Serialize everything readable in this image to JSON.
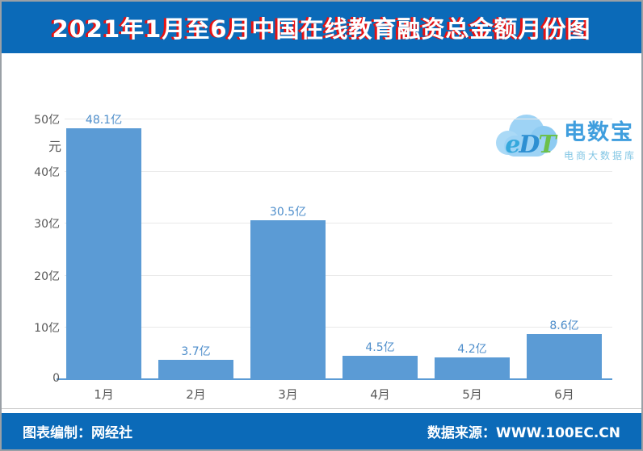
{
  "header": {
    "title": "2021年1月至6月中国在线教育融资总金额月份图"
  },
  "logo": {
    "mark_letters": [
      "e",
      "D",
      "T"
    ],
    "name": "电数宝",
    "subtitle": "电商大数据库",
    "cloud_color": "#8ecbf2",
    "name_color": "#3f9ede"
  },
  "chart_data": {
    "type": "bar",
    "title": "2021年1月至6月中国在线教育融资总金额月份图",
    "unit_label": "元",
    "categories": [
      "1月",
      "2月",
      "3月",
      "4月",
      "5月",
      "6月"
    ],
    "values": [
      48.1,
      3.7,
      30.5,
      4.5,
      4.2,
      8.6
    ],
    "value_labels": [
      "48.1亿",
      "3.7亿",
      "30.5亿",
      "4.5亿",
      "4.2亿",
      "8.6亿"
    ],
    "yticks": [
      {
        "label": "0",
        "value": 0
      },
      {
        "label": "10亿",
        "value": 10
      },
      {
        "label": "20亿",
        "value": 20
      },
      {
        "label": "30亿",
        "value": 30
      },
      {
        "label": "40亿",
        "value": 40
      },
      {
        "label": "50亿",
        "value": 50
      }
    ],
    "ylim": [
      0,
      50
    ],
    "grid": true,
    "legend": "none",
    "bar_color": "#5b9bd5",
    "value_label_color": "#4e8ecb",
    "axis_line_color": "#5b9bd5"
  },
  "footer": {
    "left": "图表编制：网经社",
    "right": "数据来源：WWW.100EC.CN"
  }
}
